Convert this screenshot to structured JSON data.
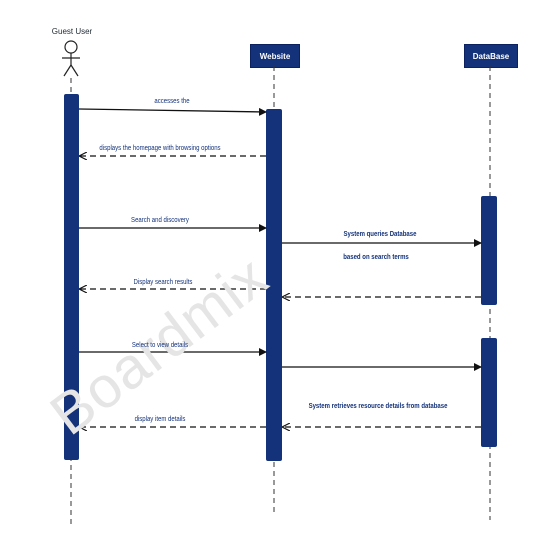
{
  "participants": {
    "guest_user": "Guest User",
    "website": "Website",
    "database": "DataBase"
  },
  "messages": [
    {
      "label": "accesses the",
      "from": "guest_user",
      "to": "website",
      "type": "sync"
    },
    {
      "label": "displays the homepage with browsing options",
      "from": "website",
      "to": "guest_user",
      "type": "return"
    },
    {
      "label": "Search and discovery",
      "from": "guest_user",
      "to": "website",
      "type": "sync"
    },
    {
      "label": "System queries Database",
      "from": "website",
      "to": "database",
      "type": "sync"
    },
    {
      "label": "based on search terms",
      "from": "website",
      "to": "database",
      "type": "note"
    },
    {
      "label": "Display search results",
      "from": "website",
      "to": "guest_user",
      "type": "return"
    },
    {
      "label": "Select to view details",
      "from": "guest_user",
      "to": "website",
      "type": "sync"
    },
    {
      "label": "System retrieves resource details from database",
      "from": "database",
      "to": "website",
      "type": "return"
    },
    {
      "label": "display item details",
      "from": "website",
      "to": "guest_user",
      "type": "return"
    }
  ],
  "watermark": "Boardmix",
  "colors": {
    "primary": "#13327a",
    "lifeline": "#333333",
    "arrow": "#111111"
  }
}
